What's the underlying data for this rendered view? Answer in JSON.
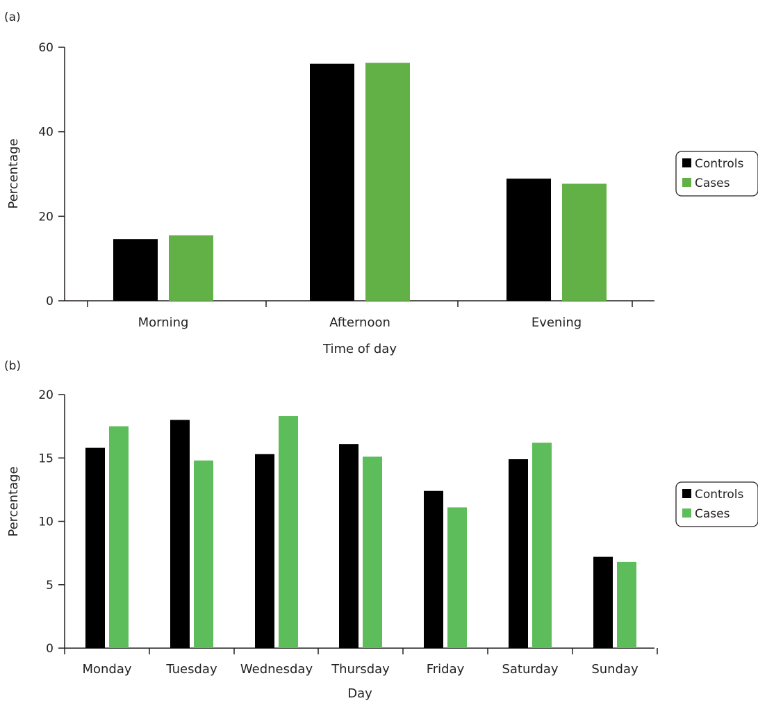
{
  "colors": {
    "controls": "#000000",
    "cases_a": "#62b146",
    "cases_b": "#5cbd5a",
    "axis": "#231f20"
  },
  "chart_data": [
    {
      "panel_label": "(a)",
      "type": "bar",
      "categories": [
        "Morning",
        "Afternoon",
        "Evening"
      ],
      "series": [
        {
          "name": "Controls",
          "values": [
            14.6,
            56.1,
            28.9
          ]
        },
        {
          "name": "Cases",
          "values": [
            15.5,
            56.3,
            27.7
          ]
        }
      ],
      "xlabel": "Time of day",
      "ylabel": "Percentage",
      "ylim": [
        0,
        60
      ],
      "yticks": [
        "0",
        "20",
        "40",
        "60"
      ],
      "grid": false,
      "legend_position": "right"
    },
    {
      "panel_label": "(b)",
      "type": "bar",
      "categories": [
        "Monday",
        "Tuesday",
        "Wednesday",
        "Thursday",
        "Friday",
        "Saturday",
        "Sunday"
      ],
      "series": [
        {
          "name": "Controls",
          "values": [
            15.8,
            18.0,
            15.3,
            16.1,
            12.4,
            14.9,
            7.2
          ]
        },
        {
          "name": "Cases",
          "values": [
            17.5,
            14.8,
            18.3,
            15.1,
            11.1,
            16.2,
            6.8
          ]
        }
      ],
      "xlabel": "Day",
      "ylabel": "Percentage",
      "ylim": [
        0,
        20
      ],
      "yticks": [
        "0",
        "5",
        "10",
        "15",
        "20"
      ],
      "grid": false,
      "legend_position": "right"
    }
  ]
}
